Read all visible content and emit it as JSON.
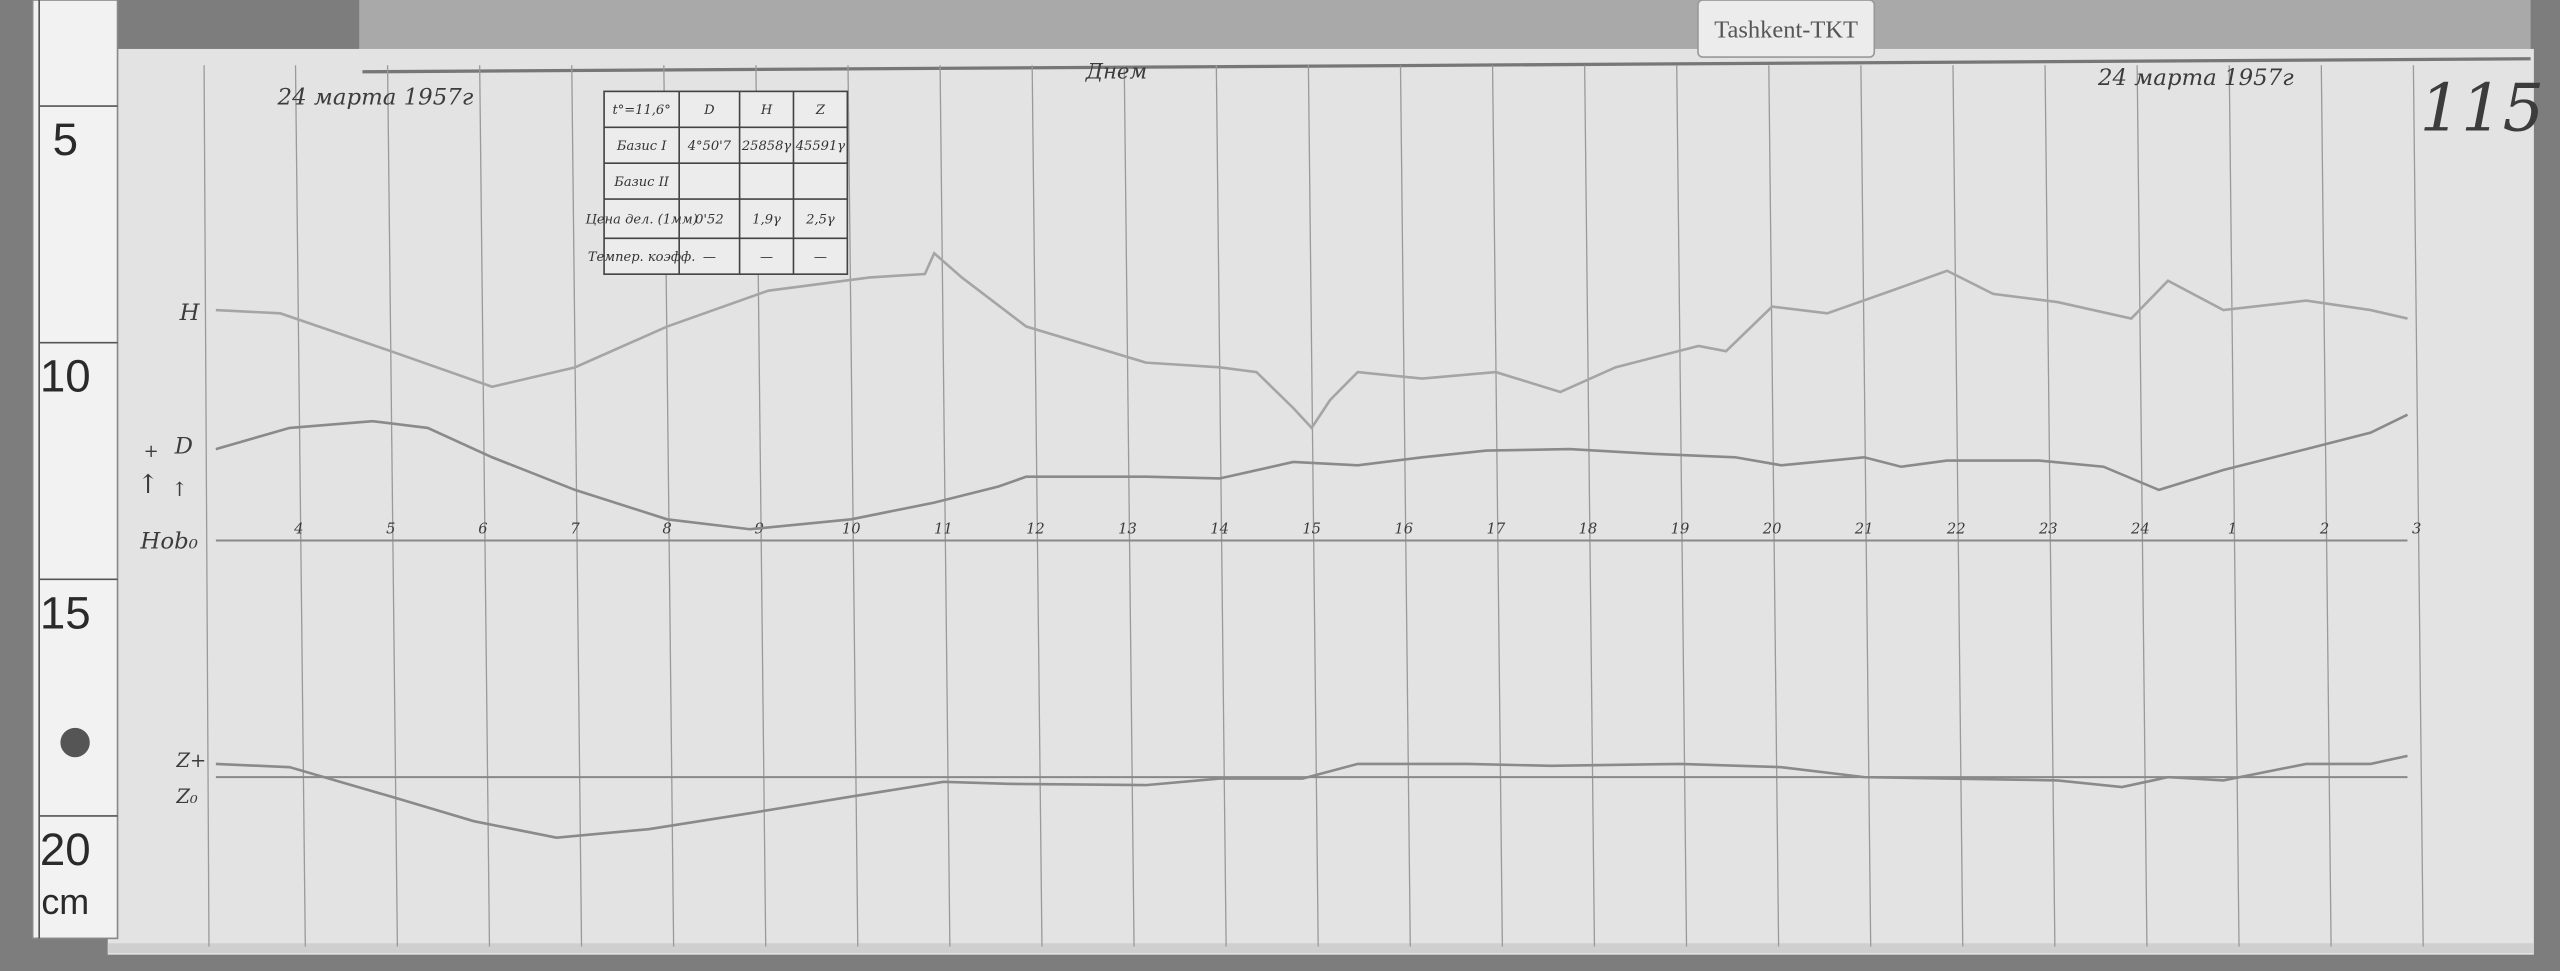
{
  "station_tag": "Tashkent-TKT",
  "sheet_number": "115",
  "date_left": "24 марта 1957г",
  "date_right": "24 марта 1957г",
  "period_note": "Днем",
  "ruler": {
    "unit": "cm",
    "labels": [
      "5",
      "10",
      "15",
      "20"
    ]
  },
  "table": {
    "header": [
      "t°=11,6°",
      "D",
      "H",
      "Z"
    ],
    "rows": [
      [
        "Базис I",
        "4°50'7",
        "25858γ",
        "45591γ"
      ],
      [
        "Базис II",
        "",
        "",
        ""
      ],
      [
        "Цена дел. (1мм)",
        "0'52",
        "1,9γ",
        "2,5γ"
      ],
      [
        "Темпер. коэфф.",
        "—",
        "—",
        "—"
      ]
    ]
  },
  "trace_labels": {
    "H": "H",
    "D": "D",
    "baseline_HD": "Hob₀",
    "Z_plus": "Z+",
    "Z0": "Z₀",
    "plus": "+",
    "arrow": "↑"
  },
  "colors": {
    "paper": "#e3e3e3",
    "board": "#7a7a7a",
    "trace": "#8a8a8a",
    "grid": "#9a9a9a"
  },
  "chart_data": {
    "type": "line",
    "title": "",
    "xlabel": "",
    "ylabel": "",
    "x_unit": "hour of day (continuous; after 24 labels restart at 1)",
    "y_unit": "mm on ruler scale",
    "tick_labels": [
      "4",
      "5",
      "6",
      "7",
      "8",
      "9",
      "10",
      "11",
      "12",
      "13",
      "14",
      "15",
      "16",
      "17",
      "18",
      "19",
      "20",
      "21",
      "22",
      "23",
      "24",
      "1",
      "2",
      "3"
    ],
    "tick_hours": [
      4,
      5,
      6,
      7,
      8,
      9,
      10,
      11,
      12,
      13,
      14,
      15,
      16,
      17,
      18,
      19,
      20,
      21,
      22,
      23,
      24,
      25,
      26,
      27
    ],
    "grid": true,
    "baselines": [
      {
        "label": "Hob₀",
        "y": 134.9
      },
      {
        "label": "Z₀",
        "y": 184.9
      }
    ],
    "series": [
      {
        "name": "H",
        "points": [
          [
            3.1,
            86.2
          ],
          [
            3.8,
            86.9
          ],
          [
            5.0,
            94.9
          ],
          [
            6.1,
            102.4
          ],
          [
            7.0,
            98.3
          ],
          [
            8.0,
            89.7
          ],
          [
            9.1,
            82.1
          ],
          [
            10.2,
            79.3
          ],
          [
            10.8,
            78.6
          ],
          [
            10.9,
            74.2
          ],
          [
            11.2,
            79.3
          ],
          [
            11.9,
            89.7
          ],
          [
            13.2,
            97.3
          ],
          [
            14.0,
            98.3
          ],
          [
            14.4,
            99.3
          ],
          [
            14.8,
            106.9
          ],
          [
            15.0,
            111.1
          ],
          [
            15.2,
            105.2
          ],
          [
            15.5,
            99.3
          ],
          [
            16.2,
            100.7
          ],
          [
            17.0,
            99.3
          ],
          [
            17.7,
            103.5
          ],
          [
            18.3,
            98.3
          ],
          [
            19.2,
            93.8
          ],
          [
            19.5,
            94.9
          ],
          [
            20.0,
            85.5
          ],
          [
            20.6,
            86.9
          ],
          [
            21.3,
            82.1
          ],
          [
            21.9,
            77.9
          ],
          [
            22.4,
            82.8
          ],
          [
            23.1,
            84.5
          ],
          [
            23.9,
            88.0
          ],
          [
            24.3,
            80.0
          ],
          [
            24.9,
            86.2
          ],
          [
            25.8,
            84.2
          ],
          [
            26.5,
            86.2
          ],
          [
            26.9,
            88.0
          ]
        ]
      },
      {
        "name": "D",
        "points": [
          [
            3.1,
            115.6
          ],
          [
            3.9,
            111.1
          ],
          [
            4.8,
            109.7
          ],
          [
            5.4,
            111.1
          ],
          [
            6.1,
            117.3
          ],
          [
            7.0,
            124.2
          ],
          [
            8.0,
            130.4
          ],
          [
            8.9,
            132.5
          ],
          [
            10.0,
            130.4
          ],
          [
            10.9,
            126.9
          ],
          [
            11.6,
            123.5
          ],
          [
            11.9,
            121.4
          ],
          [
            13.2,
            121.4
          ],
          [
            14.0,
            121.8
          ],
          [
            14.8,
            118.3
          ],
          [
            15.5,
            119.0
          ],
          [
            16.2,
            117.3
          ],
          [
            16.9,
            115.9
          ],
          [
            17.8,
            115.6
          ],
          [
            18.7,
            116.6
          ],
          [
            19.6,
            117.3
          ],
          [
            20.1,
            119.0
          ],
          [
            21.0,
            117.3
          ],
          [
            21.4,
            119.3
          ],
          [
            21.9,
            118.0
          ],
          [
            22.9,
            118.0
          ],
          [
            23.6,
            119.3
          ],
          [
            24.2,
            124.2
          ],
          [
            24.9,
            120.0
          ],
          [
            25.8,
            115.6
          ],
          [
            26.5,
            112.1
          ],
          [
            26.9,
            108.3
          ]
        ]
      },
      {
        "name": "Z",
        "points": [
          [
            3.1,
            182.1
          ],
          [
            3.9,
            182.8
          ],
          [
            5.0,
            189.0
          ],
          [
            5.9,
            194.2
          ],
          [
            6.8,
            197.7
          ],
          [
            7.8,
            195.9
          ],
          [
            8.9,
            192.5
          ],
          [
            10.0,
            189.0
          ],
          [
            11.0,
            185.9
          ],
          [
            11.7,
            186.3
          ],
          [
            13.2,
            186.6
          ],
          [
            14.0,
            185.2
          ],
          [
            14.9,
            185.2
          ],
          [
            15.5,
            182.1
          ],
          [
            16.7,
            182.1
          ],
          [
            17.6,
            182.5
          ],
          [
            19.0,
            182.1
          ],
          [
            20.1,
            182.8
          ],
          [
            21.0,
            184.9
          ],
          [
            21.9,
            185.2
          ],
          [
            23.1,
            185.6
          ],
          [
            23.8,
            187.0
          ],
          [
            24.3,
            184.9
          ],
          [
            24.9,
            185.6
          ],
          [
            25.8,
            182.1
          ],
          [
            26.5,
            182.1
          ],
          [
            26.9,
            180.4
          ]
        ]
      }
    ]
  }
}
